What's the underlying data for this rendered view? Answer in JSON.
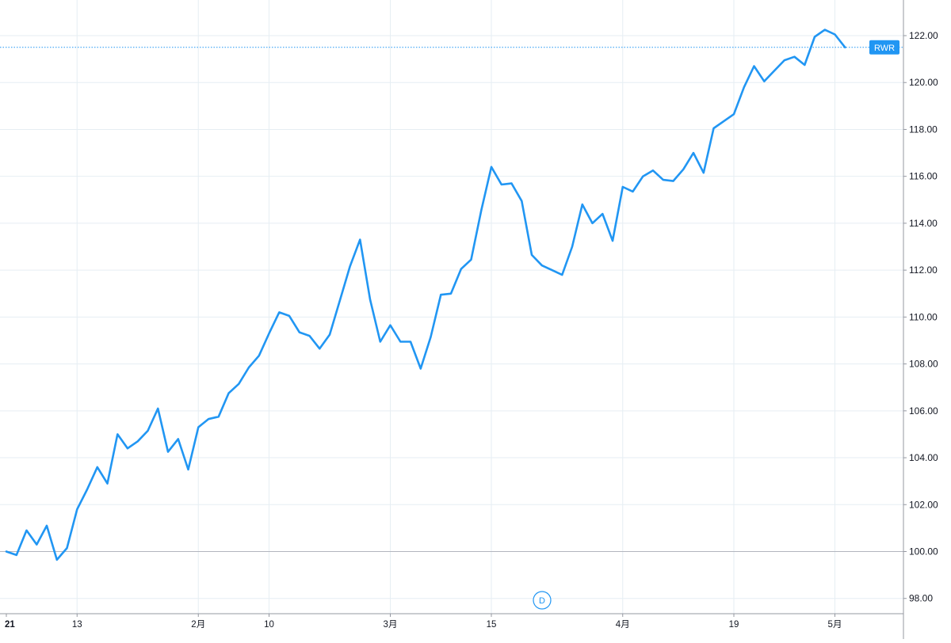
{
  "chart_data": {
    "type": "line",
    "series": [
      {
        "name": "RWR",
        "color": "#2196f3",
        "values": [
          100.0,
          99.85,
          100.9,
          100.3,
          101.1,
          99.65,
          100.15,
          101.8,
          102.65,
          103.6,
          102.9,
          105.0,
          104.4,
          104.7,
          105.15,
          106.1,
          104.25,
          104.8,
          103.5,
          105.3,
          105.65,
          105.75,
          106.75,
          107.15,
          107.85,
          108.35,
          109.3,
          110.2,
          110.05,
          109.35,
          109.2,
          108.65,
          109.25,
          110.7,
          112.15,
          113.3,
          110.75,
          108.95,
          109.65,
          108.95,
          108.95,
          107.8,
          109.15,
          110.95,
          111.0,
          112.05,
          112.45,
          114.55,
          116.4,
          115.65,
          115.7,
          114.95,
          112.65,
          112.2,
          112.0,
          111.8,
          113.0,
          114.8,
          114.0,
          114.4,
          113.25,
          115.55,
          115.35,
          116.0,
          116.25,
          115.85,
          115.8,
          116.3,
          117.0,
          116.15,
          118.05,
          118.35,
          118.65,
          119.8,
          120.7,
          120.05,
          120.5,
          120.95,
          121.1,
          120.75,
          121.95,
          122.25,
          122.05,
          121.5
        ],
        "last_value": 121.5
      }
    ],
    "x_labels": [
      "21",
      "13",
      "2月",
      "10",
      "3月",
      "15",
      "4月",
      "19",
      "5月"
    ],
    "y_ticks": [
      "98.00",
      "100.00",
      "102.00",
      "104.00",
      "106.00",
      "108.00",
      "110.00",
      "112.00",
      "114.00",
      "116.00",
      "118.00",
      "120.00",
      "122.00"
    ],
    "ylim": [
      97.5,
      123.5
    ],
    "baseline": 100.0,
    "grid": true,
    "axis_position": "right",
    "legend": "label at right axis",
    "marker_label": "D",
    "title": "",
    "xlabel": "",
    "ylabel": ""
  }
}
